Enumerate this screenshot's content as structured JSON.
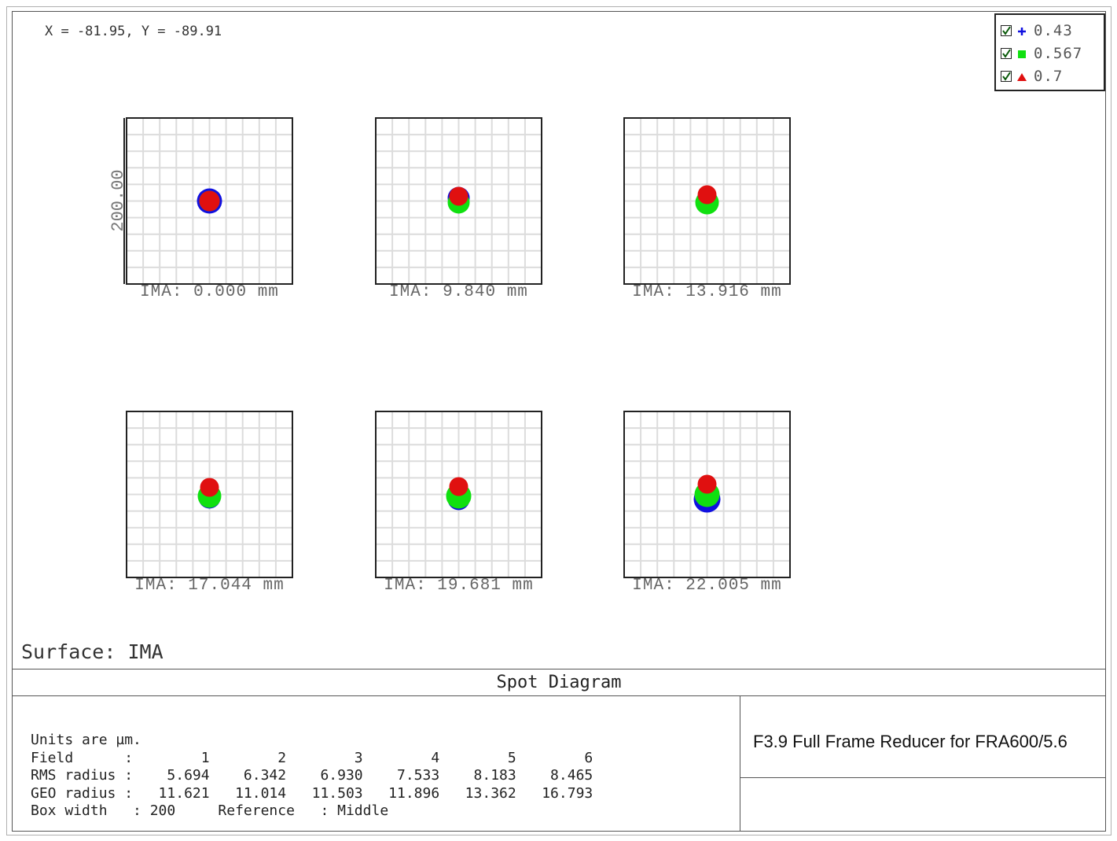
{
  "window": {
    "coord_readout": "X = -81.95, Y = -89.91",
    "surface_label": "Surface: IMA",
    "title": "Spot Diagram",
    "description": "F3.9 Full Frame Reducer for FRA600/5.6"
  },
  "legend": [
    {
      "label": "0.43",
      "color": "#1010e0",
      "marker": "plus",
      "checked": true
    },
    {
      "label": "0.567",
      "color": "#10e010",
      "marker": "square",
      "checked": true
    },
    {
      "label": "0.7",
      "color": "#e01010",
      "marker": "triangle",
      "checked": true
    }
  ],
  "stats": {
    "units_line": "Units are µm.",
    "field_label": "Field",
    "rms_label": "RMS radius",
    "geo_label": "GEO radius",
    "box_label": "Box width",
    "box_value": "200",
    "reference_label": "Reference",
    "reference_value": "Middle",
    "fields": [
      "1",
      "2",
      "3",
      "4",
      "5",
      "6"
    ],
    "rms": [
      "5.694",
      "6.342",
      "6.930",
      "7.533",
      "8.183",
      "8.465"
    ],
    "geo": [
      "11.621",
      "11.014",
      "11.503",
      "11.896",
      "13.362",
      "16.793"
    ]
  },
  "chart_data": {
    "type": "scatter",
    "title": "Spot Diagram",
    "scale_label": "200.00",
    "box_width_um": 200,
    "grid": true,
    "legend_position": "top-right",
    "series_names": [
      "0.43",
      "0.567",
      "0.7"
    ],
    "fields": [
      {
        "label": "IMA: 0.000 mm",
        "spots": [
          {
            "wl": "0.43",
            "dx": 0,
            "dy": 0,
            "r": 16
          },
          {
            "wl": "0.567",
            "dx": 0,
            "dy": 0,
            "r": 13
          },
          {
            "wl": "0.7",
            "dx": 0,
            "dy": 0,
            "r": 13
          }
        ]
      },
      {
        "label": "IMA: 9.840 mm",
        "spots": [
          {
            "wl": "0.43",
            "dx": 0,
            "dy": -4,
            "r": 14
          },
          {
            "wl": "0.567",
            "dx": 0,
            "dy": 2,
            "r": 14
          },
          {
            "wl": "0.7",
            "dx": 0,
            "dy": -6,
            "r": 12
          }
        ]
      },
      {
        "label": "IMA: 13.916 mm",
        "spots": [
          {
            "wl": "0.43",
            "dx": 0,
            "dy": 0,
            "r": 14
          },
          {
            "wl": "0.567",
            "dx": 0,
            "dy": 2,
            "r": 15
          },
          {
            "wl": "0.7",
            "dx": 0,
            "dy": -8,
            "r": 12
          }
        ]
      },
      {
        "label": "IMA: 17.044 mm",
        "spots": [
          {
            "wl": "0.43",
            "dx": 0,
            "dy": 4,
            "r": 14
          },
          {
            "wl": "0.567",
            "dx": 0,
            "dy": 2,
            "r": 15
          },
          {
            "wl": "0.7",
            "dx": 0,
            "dy": -9,
            "r": 12
          }
        ]
      },
      {
        "label": "IMA: 19.681 mm",
        "spots": [
          {
            "wl": "0.43",
            "dx": 0,
            "dy": 6,
            "r": 14
          },
          {
            "wl": "0.567",
            "dx": 0,
            "dy": 2,
            "r": 16
          },
          {
            "wl": "0.7",
            "dx": 0,
            "dy": -10,
            "r": 12
          }
        ]
      },
      {
        "label": "IMA: 22.005 mm",
        "spots": [
          {
            "wl": "0.43",
            "dx": 0,
            "dy": 6,
            "r": 17
          },
          {
            "wl": "0.567",
            "dx": 0,
            "dy": 0,
            "r": 16
          },
          {
            "wl": "0.7",
            "dx": 0,
            "dy": -13,
            "r": 12
          }
        ]
      }
    ]
  }
}
